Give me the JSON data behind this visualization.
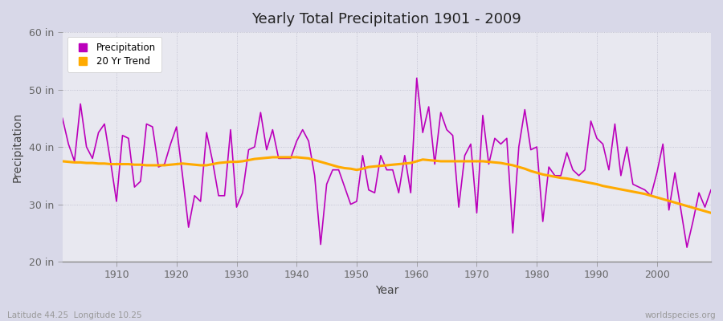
{
  "title": "Yearly Total Precipitation 1901 - 2009",
  "xlabel": "Year",
  "ylabel": "Precipitation",
  "xlim": [
    1901,
    2009
  ],
  "ylim": [
    20,
    60
  ],
  "yticks": [
    20,
    30,
    40,
    50,
    60
  ],
  "ytick_labels": [
    "20 in",
    "30 in",
    "40 in",
    "50 in",
    "60 in"
  ],
  "xticks": [
    1910,
    1920,
    1930,
    1940,
    1950,
    1960,
    1970,
    1980,
    1990,
    2000
  ],
  "precip_color": "#bb00bb",
  "trend_color": "#ffaa00",
  "outer_bg": "#d8d8e8",
  "plot_bg": "#e8e8f0",
  "footer_left": "Latitude 44.25  Longitude 10.25",
  "footer_right": "worldspecies.org",
  "years": [
    1901,
    1902,
    1903,
    1904,
    1905,
    1906,
    1907,
    1908,
    1909,
    1910,
    1911,
    1912,
    1913,
    1914,
    1915,
    1916,
    1917,
    1918,
    1919,
    1920,
    1921,
    1922,
    1923,
    1924,
    1925,
    1926,
    1927,
    1928,
    1929,
    1930,
    1931,
    1932,
    1933,
    1934,
    1935,
    1936,
    1937,
    1938,
    1939,
    1940,
    1941,
    1942,
    1943,
    1944,
    1945,
    1946,
    1947,
    1948,
    1949,
    1950,
    1951,
    1952,
    1953,
    1954,
    1955,
    1956,
    1957,
    1958,
    1959,
    1960,
    1961,
    1962,
    1963,
    1964,
    1965,
    1966,
    1967,
    1968,
    1969,
    1970,
    1971,
    1972,
    1973,
    1974,
    1975,
    1976,
    1977,
    1978,
    1979,
    1980,
    1981,
    1982,
    1983,
    1984,
    1985,
    1986,
    1987,
    1988,
    1989,
    1990,
    1991,
    1992,
    1993,
    1994,
    1995,
    1996,
    1997,
    1998,
    1999,
    2000,
    2001,
    2002,
    2003,
    2004,
    2005,
    2006,
    2007,
    2008,
    2009
  ],
  "precip": [
    45.0,
    40.5,
    37.5,
    47.5,
    40.0,
    38.0,
    42.5,
    44.0,
    37.5,
    30.5,
    42.0,
    41.5,
    33.0,
    34.0,
    44.0,
    43.5,
    36.5,
    37.0,
    40.5,
    43.5,
    35.0,
    26.0,
    31.5,
    30.5,
    42.5,
    37.5,
    31.5,
    31.5,
    43.0,
    29.5,
    32.0,
    39.5,
    40.0,
    46.0,
    39.5,
    43.0,
    38.0,
    38.0,
    38.0,
    41.0,
    43.0,
    41.0,
    35.0,
    23.0,
    33.5,
    36.0,
    36.0,
    33.0,
    30.0,
    30.5,
    38.5,
    32.5,
    32.0,
    38.5,
    36.0,
    36.0,
    32.0,
    38.5,
    32.0,
    52.0,
    42.5,
    47.0,
    37.0,
    46.0,
    43.0,
    42.0,
    29.5,
    38.5,
    40.5,
    28.5,
    45.5,
    37.0,
    41.5,
    40.5,
    41.5,
    25.0,
    40.0,
    46.5,
    39.5,
    40.0,
    27.0,
    36.5,
    35.0,
    35.0,
    39.0,
    36.0,
    35.0,
    36.0,
    44.5,
    41.5,
    40.5,
    36.0,
    44.0,
    35.0,
    40.0,
    33.5,
    33.0,
    32.5,
    31.5,
    35.5,
    40.5,
    29.0,
    35.5,
    29.0,
    22.5,
    27.0,
    32.0,
    29.5,
    32.5
  ],
  "trend": [
    37.5,
    37.4,
    37.3,
    37.3,
    37.2,
    37.2,
    37.1,
    37.1,
    37.0,
    37.0,
    37.0,
    37.0,
    36.9,
    36.9,
    36.8,
    36.8,
    36.8,
    36.8,
    36.9,
    37.0,
    37.1,
    37.0,
    36.9,
    36.8,
    36.8,
    37.0,
    37.2,
    37.3,
    37.4,
    37.4,
    37.5,
    37.7,
    37.9,
    38.0,
    38.1,
    38.2,
    38.2,
    38.2,
    38.2,
    38.2,
    38.1,
    38.0,
    37.7,
    37.4,
    37.1,
    36.8,
    36.5,
    36.3,
    36.2,
    36.0,
    36.2,
    36.5,
    36.6,
    36.7,
    36.8,
    36.9,
    37.0,
    37.1,
    37.2,
    37.5,
    37.8,
    37.7,
    37.6,
    37.5,
    37.5,
    37.5,
    37.5,
    37.5,
    37.5,
    37.5,
    37.5,
    37.4,
    37.3,
    37.2,
    37.0,
    36.8,
    36.5,
    36.2,
    35.8,
    35.5,
    35.2,
    35.0,
    34.8,
    34.6,
    34.5,
    34.3,
    34.1,
    33.9,
    33.7,
    33.5,
    33.2,
    33.0,
    32.8,
    32.6,
    32.4,
    32.2,
    32.0,
    31.8,
    31.5,
    31.2,
    30.9,
    30.6,
    30.3,
    30.0,
    29.7,
    29.4,
    29.1,
    28.8,
    28.5
  ]
}
